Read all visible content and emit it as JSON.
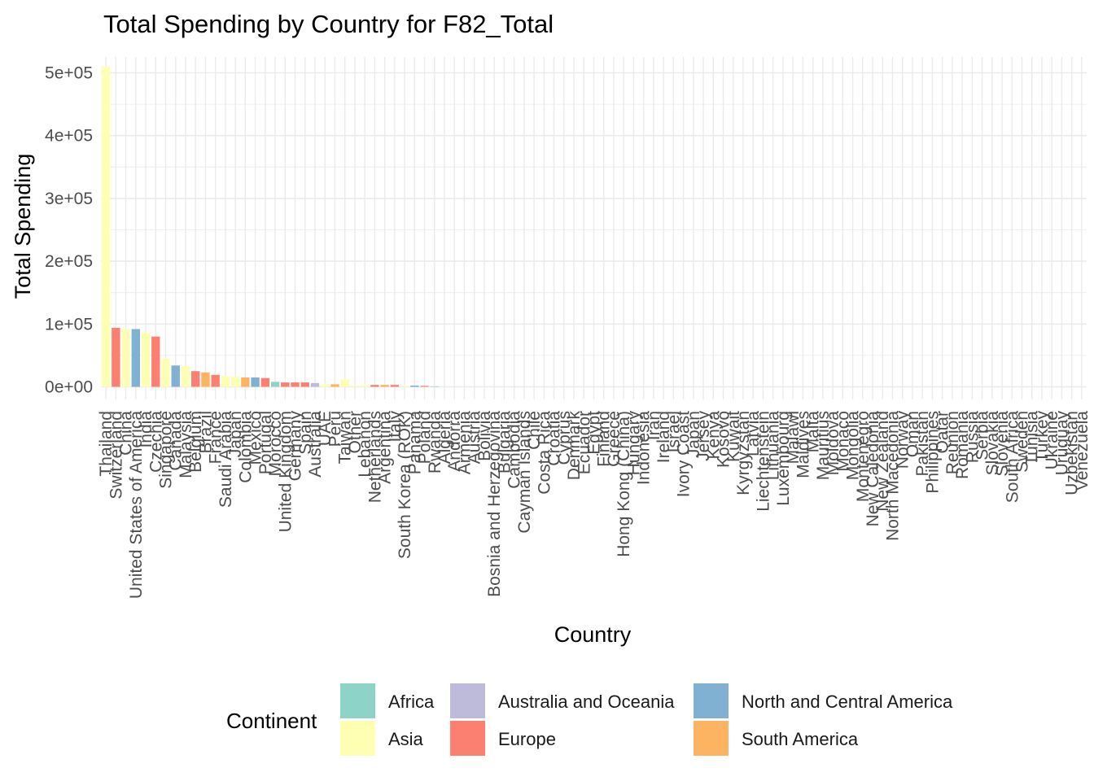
{
  "chart_data": {
    "type": "bar",
    "title": "Total Spending by Country for F82_Total",
    "xlabel": "Country",
    "ylabel": "Total Spending",
    "ylim": [
      0,
      510000
    ],
    "yticks": [
      {
        "value": 0,
        "label": "0e+00"
      },
      {
        "value": 100000,
        "label": "1e+05"
      },
      {
        "value": 200000,
        "label": "2e+05"
      },
      {
        "value": 300000,
        "label": "3e+05"
      },
      {
        "value": 400000,
        "label": "4e+05"
      },
      {
        "value": 500000,
        "label": "5e+05"
      }
    ],
    "grid": true,
    "legend_placement": "bottom",
    "legend": {
      "title": "Continent",
      "entries": [
        {
          "name": "Africa",
          "color": "#8DD3C7"
        },
        {
          "name": "Asia",
          "color": "#FFFFB3"
        },
        {
          "name": "Australia and Oceania",
          "color": "#BEBADA"
        },
        {
          "name": "Europe",
          "color": "#FB8072"
        },
        {
          "name": "North and Central America",
          "color": "#80B1D3"
        },
        {
          "name": "South America",
          "color": "#FDB462"
        }
      ]
    },
    "categories": [
      "Thailand",
      "Switzerland",
      "China",
      "United States of America",
      "India",
      "Czechia",
      "Singapore",
      "Canada",
      "Malaysia",
      "Belgium",
      "Brazil",
      "France",
      "Saudi Arabia",
      "Japan",
      "Colombia",
      "Mexico",
      "Portugal",
      "Morocco",
      "United Kingdom",
      "Germany",
      "Spain",
      "Australia",
      "UAE",
      "Peru",
      "Taiwan",
      "Other",
      "Lebanon",
      "Netherlands",
      "Argentina",
      "Italy",
      "South Korea (ROK)",
      "Panama",
      "Poland",
      "Rwanda",
      "Algeria",
      "Andorra",
      "Armenia",
      "Austria",
      "Bolivia",
      "Bosnia and Herzegovina",
      "Bulgaria",
      "Cambodia",
      "Cayman Islands",
      "Chile",
      "Costa Rica",
      "Croatia",
      "Cyprus",
      "Denmark",
      "Ecuador",
      "Egypt",
      "Finland",
      "Greece",
      "Hong Kong (China)",
      "Hungary",
      "Indonesia",
      "Iran",
      "Ireland",
      "Israel",
      "Ivory Coast",
      "Japan",
      "Jersey",
      "Kenya",
      "Kosovo",
      "Kuwait",
      "Kyrgyzstan",
      "Latvia",
      "Liechtenstein",
      "Lithuania",
      "Luxembourg",
      "Malawi",
      "Maldives",
      "Malta",
      "Mauritius",
      "Moldova",
      "Monaco",
      "Mongolia",
      "Montenegro",
      "New Caledonia",
      "New Zealand",
      "North Macedonia",
      "Norway",
      "Oman",
      "Pakistan",
      "Philippines",
      "Qatar",
      "Reunion",
      "Romania",
      "Russia",
      "Serbia",
      "Slovakia",
      "Slovenia",
      "South Africa",
      "Sweden",
      "Tunisia",
      "Turkey",
      "Ukraine",
      "Uruguay",
      "Uzbekistan",
      "Venezuela"
    ],
    "series": [
      {
        "values": [
          510000,
          94000,
          92000,
          92000,
          86000,
          80000,
          45000,
          34000,
          33000,
          25000,
          23000,
          19000,
          17000,
          16000,
          15000,
          15000,
          14000,
          8000,
          7000,
          7000,
          7000,
          6000,
          4000,
          4000,
          12000,
          2000,
          3000,
          3000,
          3000,
          3000,
          2000,
          2000,
          1500,
          800,
          0,
          0,
          0,
          0,
          0,
          0,
          0,
          0,
          0,
          0,
          0,
          0,
          0,
          0,
          0,
          0,
          0,
          0,
          0,
          0,
          0,
          0,
          0,
          0,
          0,
          0,
          0,
          0,
          0,
          0,
          0,
          0,
          0,
          0,
          0,
          0,
          0,
          0,
          0,
          0,
          0,
          0,
          0,
          0,
          0,
          0,
          0,
          0,
          0,
          0,
          0,
          0,
          0,
          0,
          0,
          0,
          0,
          0,
          0,
          0,
          0,
          0,
          0,
          0,
          0
        ]
      }
    ],
    "continents": [
      "Asia",
      "Europe",
      "Asia",
      "North and Central America",
      "Asia",
      "Europe",
      "Asia",
      "North and Central America",
      "Asia",
      "Europe",
      "South America",
      "Europe",
      "Asia",
      "Asia",
      "South America",
      "North and Central America",
      "Europe",
      "Africa",
      "Europe",
      "Europe",
      "Europe",
      "Australia and Oceania",
      "Asia",
      "South America",
      "Asia",
      "Asia",
      "Asia",
      "Europe",
      "South America",
      "Europe",
      "Asia",
      "North and Central America",
      "Europe",
      "Africa",
      "Africa",
      "Europe",
      "Asia",
      "Europe",
      "South America",
      "Europe",
      "Europe",
      "Asia",
      "North and Central America",
      "South America",
      "North and Central America",
      "Europe",
      "Europe",
      "Europe",
      "South America",
      "Africa",
      "Europe",
      "Europe",
      "Asia",
      "Europe",
      "Asia",
      "Asia",
      "Europe",
      "Asia",
      "Africa",
      "Asia",
      "Europe",
      "Africa",
      "Europe",
      "Asia",
      "Asia",
      "Europe",
      "Europe",
      "Europe",
      "Europe",
      "Africa",
      "Asia",
      "Europe",
      "Africa",
      "Europe",
      "Europe",
      "Asia",
      "Europe",
      "Australia and Oceania",
      "Australia and Oceania",
      "Europe",
      "Europe",
      "Asia",
      "Asia",
      "Asia",
      "Asia",
      "Africa",
      "Europe",
      "Europe",
      "Europe",
      "Europe",
      "Europe",
      "Africa",
      "Europe",
      "Africa",
      "Asia",
      "Europe",
      "South America",
      "Asia",
      "South America"
    ]
  }
}
